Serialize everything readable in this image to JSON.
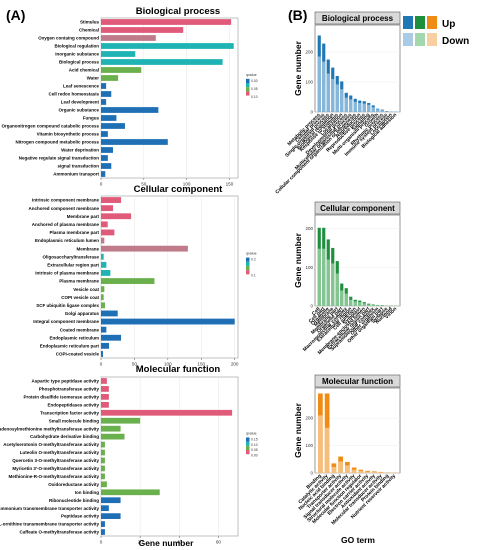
{
  "panel_labels": {
    "a": "(A)",
    "b": "(B)"
  },
  "legend_b": {
    "up": "Up",
    "down": "Down",
    "colors": {
      "bp_up": "#1f77b4",
      "bp_down": "#a9cbe6",
      "cc_up": "#1e8f3c",
      "cc_down": "#a5d7ae",
      "mf_up": "#f08c14",
      "mf_down": "#f8cfa0"
    }
  },
  "pvalue_legend": {
    "title": "qvalue"
  },
  "bar_colors": {
    "pink": "#e05a7a",
    "mauve": "#c07b8a",
    "teal": "#1fb3b3",
    "green": "#6ab04c",
    "blue": "#1f6fb5"
  },
  "chart_data": [
    {
      "type": "bar",
      "orientation": "horizontal",
      "title": "Biological process",
      "xlim": [
        0,
        160
      ],
      "xticks": [
        0,
        50,
        100,
        150
      ],
      "qvalue_ticks": [
        "0.00",
        "0.05",
        "0.10"
      ],
      "categories": [
        "Stimulus",
        "Chemical",
        "Oxygen containg compound",
        "Biological regulation",
        "Inorganic substance",
        "Biological process",
        "Acid chemical",
        "Water",
        "Leaf senescence",
        "Cell redox homeostasis",
        "Leaf development",
        "Organic substance",
        "Fungus",
        "Organonitrogen compound catabolic process",
        "Vitamin biosynthetic process",
        "Nitrogen compound metabolic process",
        "Water deprivation",
        "Negative regulate signal transduction",
        "signal transduction",
        "Ammonium transport"
      ],
      "values": [
        152,
        96,
        64,
        155,
        40,
        142,
        47,
        20,
        6,
        12,
        6,
        67,
        18,
        28,
        8,
        78,
        14,
        8,
        12,
        5
      ],
      "colors": [
        "pink",
        "pink",
        "mauve",
        "teal",
        "teal",
        "teal",
        "green",
        "green",
        "blue",
        "blue",
        "blue",
        "blue",
        "blue",
        "blue",
        "blue",
        "blue",
        "blue",
        "blue",
        "blue",
        "blue"
      ]
    },
    {
      "type": "bar",
      "orientation": "horizontal",
      "title": "Cellular component",
      "xlim": [
        0,
        205
      ],
      "xticks": [
        0,
        50,
        100,
        150,
        200
      ],
      "qvalue_ticks": [
        "0.2",
        "0.1"
      ],
      "categories": [
        "Intrinsic component membrane",
        "Anchored component membrane",
        "Membrane part",
        "Anchored of plasma membrane",
        "Plasma membrane part",
        "Endoplasmic reticulum lumen",
        "Membrane",
        "Oligosaccharyltransferase",
        "Extracellular region part",
        "Intrinsic of plasma membrane",
        "Plasma membrane",
        "Vesicle coat",
        "COPI vesicle coat",
        "SCF ubiquitin ligase complex",
        "Golgi apparatus",
        "Integral component membrane",
        "Coated membrane",
        "Endoplasmic reticulum",
        "Endoplasmic reticulum part",
        "COPI-coated vesicle"
      ],
      "values": [
        30,
        18,
        45,
        10,
        20,
        5,
        130,
        4,
        8,
        14,
        80,
        5,
        4,
        6,
        25,
        200,
        8,
        30,
        12,
        3
      ],
      "colors": [
        "pink",
        "pink",
        "pink",
        "pink",
        "pink",
        "mauve",
        "mauve",
        "teal",
        "teal",
        "teal",
        "green",
        "green",
        "green",
        "green",
        "blue",
        "blue",
        "blue",
        "blue",
        "blue",
        "blue"
      ]
    },
    {
      "type": "bar",
      "orientation": "horizontal",
      "title": "Molecular function",
      "xlabel": "Gene number",
      "xlim": [
        0,
        70
      ],
      "xticks": [
        0,
        20,
        40,
        60
      ],
      "qvalue_ticks": [
        "0.15",
        "0.10",
        "0.05",
        "0.00"
      ],
      "categories": [
        "Aspartic type peptidase activity",
        "Phosphotransferase activity",
        "Protein disulfide isomerase activity",
        "Endopeptidases activity",
        "Transcription factor activity",
        "Small molecule binding",
        "S-adenosylmethionine methyltransferase activity",
        "Carbohydrate derivative binding",
        "Acetylserotonin O-methyltransferase activity",
        "Luteolin O-methyltransferase activity",
        "Quercetin 3-O-methyltransferase activity",
        "Myricetin 3'-O-methyltransferase activity",
        "Methionine-R-O-methyltransferase activity",
        "Oxidoreductase activity",
        "Ion binding",
        "Ribonucleotide binding",
        "Ammonium transmembrane transporter activity",
        "Peptidase activity",
        "L-ornithine transmembrane transporter activity",
        "Caffeate O-methyltransferase activity"
      ],
      "values": [
        3,
        4,
        4,
        4,
        67,
        20,
        10,
        12,
        2,
        2,
        2,
        2,
        2,
        3,
        30,
        10,
        4,
        10,
        2,
        2
      ],
      "colors": [
        "pink",
        "pink",
        "pink",
        "pink",
        "pink",
        "green",
        "green",
        "green",
        "green",
        "green",
        "green",
        "green",
        "green",
        "green",
        "green",
        "blue",
        "blue",
        "blue",
        "blue",
        "blue"
      ]
    },
    {
      "type": "bar",
      "orientation": "vertical",
      "title": "Biological process",
      "ylabel": "Gene number",
      "ylim": [
        0,
        290
      ],
      "yticks": [
        0,
        100,
        200
      ],
      "categories": [
        "Metabolic process",
        "Cellular process",
        "Single-organism process",
        "Biological regulation",
        "Response to stimulus",
        "Localization",
        "Developmental process",
        "Multicellular organismal process",
        "Cellular component organization or biogenesis",
        "Reproduction",
        "Reproductive process",
        "Signaling",
        "Multi-organism process",
        "Growth",
        "Rhythmic process",
        "Immune system process",
        "Locomotion",
        "Biological adhesion"
      ],
      "up": [
        255,
        228,
        175,
        148,
        120,
        102,
        64,
        55,
        44,
        38,
        36,
        30,
        22,
        11,
        8,
        3,
        1,
        1
      ],
      "down": [
        185,
        168,
        128,
        110,
        92,
        76,
        48,
        42,
        34,
        30,
        28,
        24,
        16,
        9,
        6,
        2,
        1,
        1
      ]
    },
    {
      "type": "bar",
      "orientation": "vertical",
      "title": "Cellular component",
      "ylabel": "Gene number",
      "ylim": [
        0,
        235
      ],
      "yticks": [
        0,
        100,
        200
      ],
      "categories": [
        "Cell",
        "Cell part",
        "Organelle",
        "Membrane",
        "Membrane part",
        "Organelle part",
        "Macromolecular complex",
        "Extracellular region",
        "Cell junction",
        "Symplast",
        "Membrane-enclosed lumen",
        "Extracellular region part",
        "Supramolecular complex",
        "Other organism",
        "Other organism part",
        "Synapse",
        "Nucleoid",
        "Virion"
      ],
      "up": [
        202,
        202,
        172,
        150,
        116,
        58,
        46,
        24,
        16,
        14,
        10,
        6,
        4,
        2,
        2,
        1,
        1,
        1
      ],
      "down": [
        148,
        148,
        120,
        110,
        84,
        40,
        32,
        16,
        12,
        10,
        7,
        4,
        3,
        1,
        1,
        1,
        1,
        1
      ]
    },
    {
      "type": "bar",
      "orientation": "vertical",
      "title": "Molecular function",
      "ylabel": "Gene number",
      "xlabel": "GO term",
      "ylim": [
        0,
        310
      ],
      "yticks": [
        0,
        100,
        200
      ],
      "categories": [
        "Binding",
        "Catalytic activity",
        "Nucleic acid binding",
        "Transporter activity",
        "Signal transducer activity",
        "Structural molecule activity",
        "Molecular function regulator",
        "Electron carrier activity",
        "Antioxidant activity",
        "Molecular transducer activity",
        "Protein binding",
        "Nutrient reservoir activity"
      ],
      "up": [
        290,
        290,
        35,
        60,
        40,
        20,
        12,
        8,
        6,
        4,
        2,
        1
      ],
      "down": [
        210,
        165,
        22,
        42,
        28,
        12,
        8,
        5,
        4,
        3,
        1,
        1
      ]
    }
  ]
}
